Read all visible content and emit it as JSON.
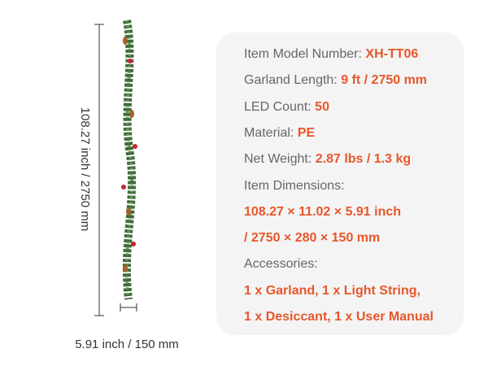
{
  "dimensions": {
    "height": "108.27 inch /  2750 mm",
    "width": "5.91 inch /  150 mm"
  },
  "specs": [
    {
      "label": "Item Model Number:",
      "value": "XH-TT06"
    },
    {
      "label": "Garland Length:",
      "value": "9 ft / 2750 mm"
    },
    {
      "label": "LED Count:",
      "value": "50"
    },
    {
      "label": "Material:",
      "value": "PE"
    },
    {
      "label": "Net Weight:",
      "value": "2.87 lbs / 1.3 kg"
    }
  ],
  "item_dimensions": {
    "label": "Item Dimensions:",
    "lines": [
      "108.27 × 11.02 × 5.91 inch",
      "/ 2750 × 280 × 150 mm"
    ]
  },
  "accessories": {
    "label": "Accessories:",
    "lines": [
      "1 x Garland, 1 x Light String,",
      "1 x Desiccant, 1 x User Manual"
    ]
  }
}
